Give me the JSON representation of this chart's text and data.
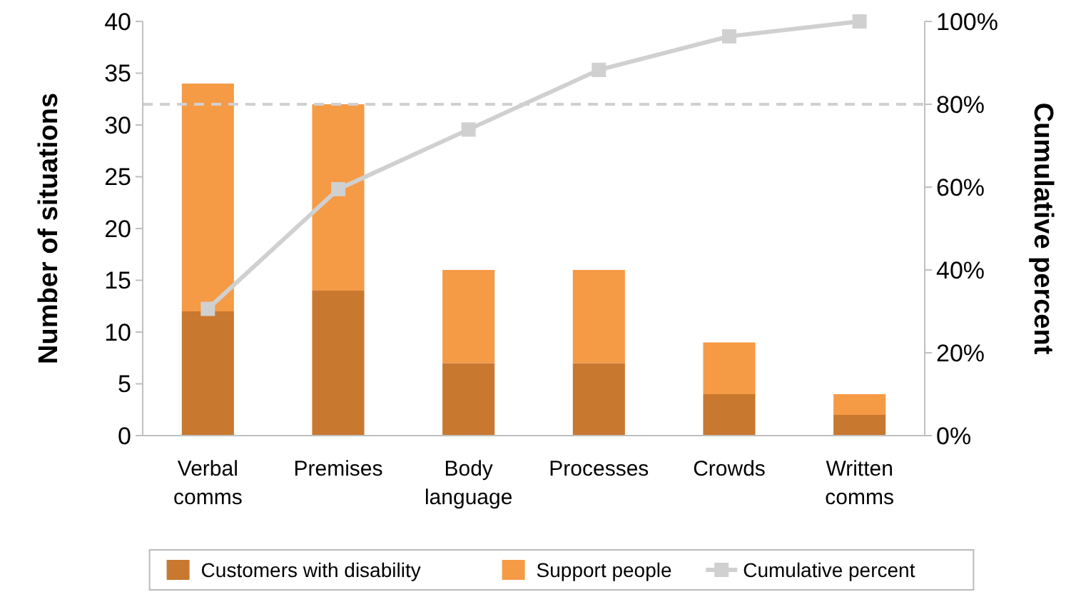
{
  "chart_data": {
    "type": "bar",
    "stacked": true,
    "categories": [
      "Verbal comms",
      "Premises",
      "Body language",
      "Processes",
      "Crowds",
      "Written comms"
    ],
    "series": [
      {
        "name": "Customers with disability",
        "color": "#c8782f",
        "values": [
          12,
          14,
          7,
          7,
          4,
          2
        ]
      },
      {
        "name": "Support people",
        "color": "#f59a45",
        "values": [
          22,
          18,
          9,
          9,
          5,
          2
        ]
      },
      {
        "name": "Cumulative percent",
        "type": "line",
        "axis": "y2",
        "color": "#d0d0d0",
        "values": [
          30.6,
          59.5,
          73.9,
          88.3,
          96.4,
          100
        ]
      }
    ],
    "ylabel": "Number of situations",
    "y2label": "Cumulative percent",
    "ylim": [
      0,
      40
    ],
    "yticks": [
      0,
      5,
      10,
      15,
      20,
      25,
      30,
      35,
      40
    ],
    "y2lim": [
      0,
      100
    ],
    "y2ticks": [
      {
        "value": 0,
        "label": "0%"
      },
      {
        "value": 20,
        "label": "20%"
      },
      {
        "value": 40,
        "label": "40%"
      },
      {
        "value": 60,
        "label": "60%"
      },
      {
        "value": 80,
        "label": "80%"
      },
      {
        "value": 100,
        "label": "100%"
      }
    ],
    "ref_lines": [
      {
        "axis": "y2",
        "value": 80,
        "color": "#d0d0d0",
        "line_style": "dashed"
      }
    ],
    "marker": "square",
    "legend": "bottom",
    "grid": false
  }
}
